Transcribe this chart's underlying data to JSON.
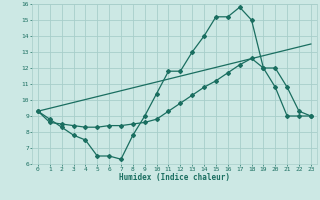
{
  "xlabel": "Humidex (Indice chaleur)",
  "bg_color": "#cce8e4",
  "grid_color": "#a8ceca",
  "line_color": "#1a6e60",
  "xlim": [
    -0.5,
    23.5
  ],
  "ylim": [
    6,
    16
  ],
  "xticks": [
    0,
    1,
    2,
    3,
    4,
    5,
    6,
    7,
    8,
    9,
    10,
    11,
    12,
    13,
    14,
    15,
    16,
    17,
    18,
    19,
    20,
    21,
    22,
    23
  ],
  "yticks": [
    6,
    7,
    8,
    9,
    10,
    11,
    12,
    13,
    14,
    15,
    16
  ],
  "line1_x": [
    0,
    1,
    2,
    3,
    4,
    5,
    6,
    7,
    8,
    9,
    10,
    11,
    12,
    13,
    14,
    15,
    16,
    17,
    18,
    19,
    20,
    21,
    22,
    23
  ],
  "line1_y": [
    9.3,
    8.8,
    8.3,
    7.8,
    7.5,
    6.5,
    6.5,
    6.3,
    7.8,
    9.0,
    10.4,
    11.8,
    11.8,
    13.0,
    14.0,
    15.2,
    15.2,
    15.8,
    15.0,
    12.0,
    10.8,
    9.0,
    9.0,
    9.0
  ],
  "line2_x": [
    0,
    1,
    2,
    3,
    4,
    5,
    6,
    7,
    8,
    9,
    10,
    11,
    12,
    13,
    14,
    15,
    16,
    17,
    18,
    19,
    20,
    21,
    22,
    23
  ],
  "line2_y": [
    9.3,
    8.6,
    8.5,
    8.4,
    8.3,
    8.3,
    8.4,
    8.4,
    8.5,
    8.6,
    8.8,
    9.3,
    9.8,
    10.3,
    10.8,
    11.2,
    11.7,
    12.2,
    12.6,
    12.0,
    12.0,
    10.8,
    9.3,
    9.0
  ],
  "line3_x": [
    0,
    23
  ],
  "line3_y": [
    9.3,
    13.5
  ]
}
